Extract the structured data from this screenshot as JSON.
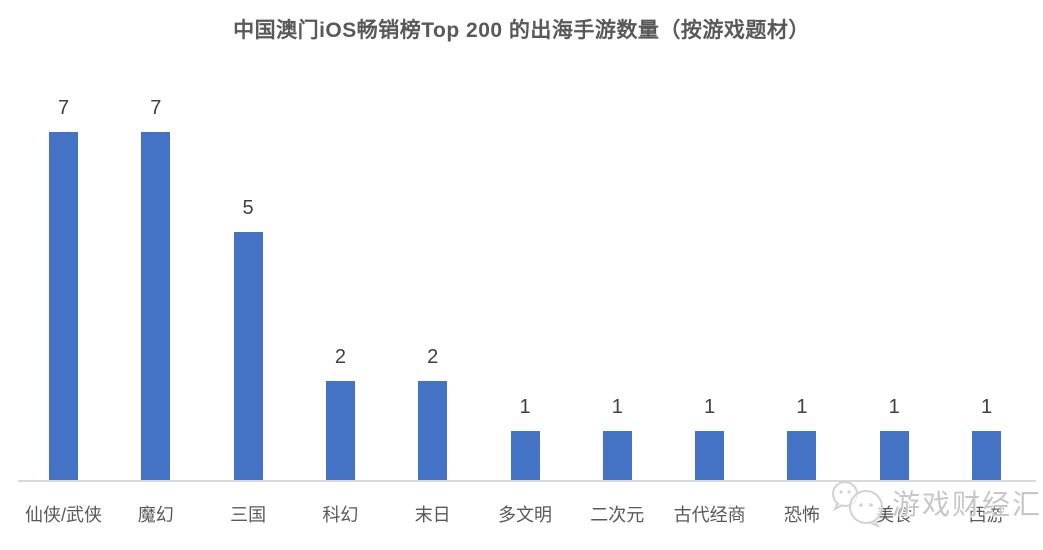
{
  "title": "中国澳门iOS畅销榜Top 200 的出海手游数量（按游戏题材）",
  "watermark": {
    "text": "游戏财经汇",
    "icon": "wechat-icon"
  },
  "colors": {
    "bar": "#4472C4",
    "axis_line": "#D9D9D9",
    "title_text": "#595959",
    "value_label": "#404040",
    "category_label": "#595959",
    "watermark_text": "#C7C7C7"
  },
  "chart_data": {
    "type": "bar",
    "title": "中国澳门iOS畅销榜Top 200 的出海手游数量（按游戏题材）",
    "categories": [
      "仙侠/武侠",
      "魔幻",
      "三国",
      "科幻",
      "末日",
      "多文明",
      "二次元",
      "古代经商",
      "恐怖",
      "美食",
      "西游"
    ],
    "values": [
      7,
      7,
      5,
      2,
      2,
      1,
      1,
      1,
      1,
      1,
      1
    ],
    "xlabel": "",
    "ylabel": "",
    "ylim": [
      0,
      7.5
    ],
    "grid": false,
    "legend": "none",
    "y_axis_visible": false,
    "data_labels": true
  }
}
